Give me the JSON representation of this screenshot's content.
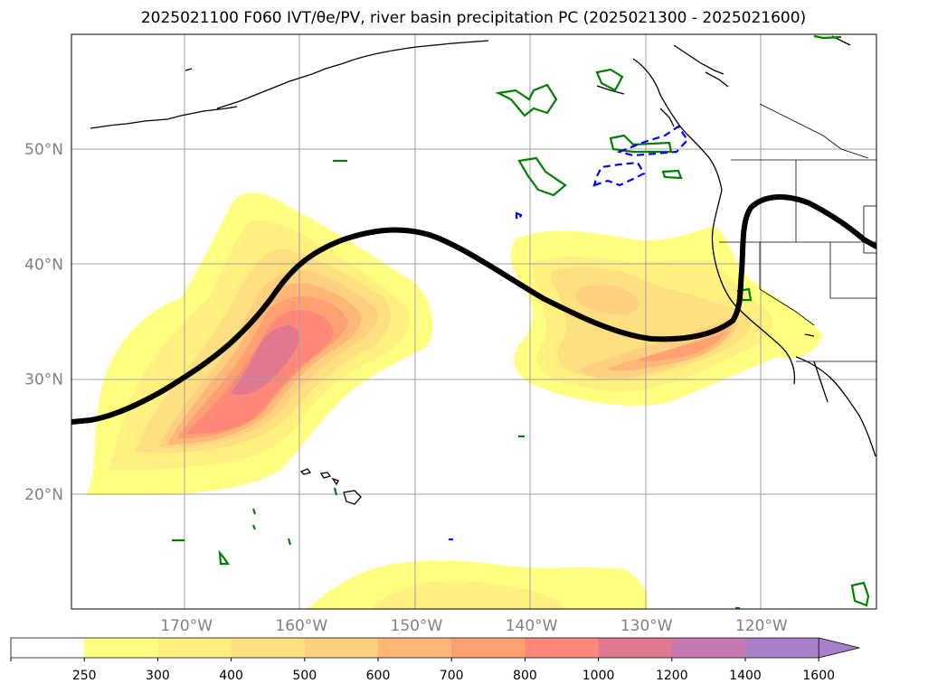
{
  "title": "2025021100 F060 IVT/θe/PV, river basin precipitation PC (2025021300 - 2025021600)",
  "map": {
    "lat_ticks": [
      {
        "value": 20,
        "label": "20°N"
      },
      {
        "value": 30,
        "label": "30°N"
      },
      {
        "value": 40,
        "label": "40°N"
      },
      {
        "value": 50,
        "label": "50°N"
      }
    ],
    "lon_ticks": [
      {
        "value": -170,
        "label": "170°W"
      },
      {
        "value": -160,
        "label": "160°W"
      },
      {
        "value": -150,
        "label": "150°W"
      },
      {
        "value": -140,
        "label": "140°W"
      },
      {
        "value": -130,
        "label": "130°W"
      },
      {
        "value": -120,
        "label": "120°W"
      }
    ],
    "extent": {
      "lon_min": -180,
      "lon_max": -110,
      "lat_min": 10,
      "lat_max": 60
    },
    "grid": true
  },
  "colorbar": {
    "levels": [
      "250",
      "300",
      "400",
      "500",
      "600",
      "700",
      "800",
      "1000",
      "1200",
      "1400",
      "1600"
    ],
    "colors": [
      "#ffffff",
      "#ffff80",
      "#fff080",
      "#ffe080",
      "#ffd080",
      "#ffb878",
      "#ffa070",
      "#ff8878",
      "#e07890",
      "#c878b0",
      "#a880c8"
    ],
    "extend": "max"
  },
  "colors": {
    "ivt_contour_line": "#000000",
    "positive_pv": "#008000",
    "negative_pv": "#0000ff"
  }
}
